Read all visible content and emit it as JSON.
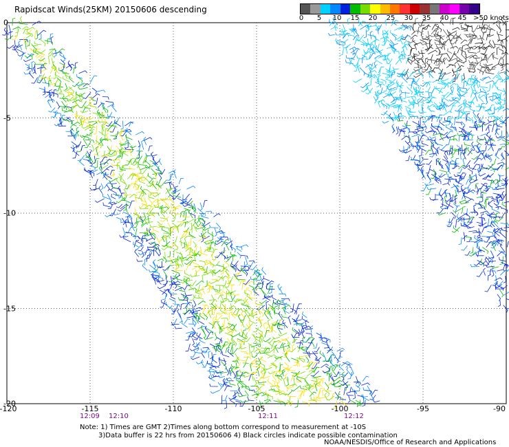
{
  "title": "Rapidscat Winds(25KM) 20150606 descending",
  "legend": {
    "colors": [
      "#555555",
      "#999999",
      "#00d0ff",
      "#0088ff",
      "#0022dd",
      "#00bb00",
      "#77dd00",
      "#ffff00",
      "#ffbb00",
      "#ff7700",
      "#ff3333",
      "#cc0000",
      "#993333",
      "#777777",
      "#cc00cc",
      "#ff00ff",
      "#7700aa",
      "#330088"
    ],
    "labels": [
      "0",
      "5",
      "10",
      "15",
      "20",
      "25",
      "30",
      "35",
      "40",
      "45",
      ">50 knots"
    ]
  },
  "axes": {
    "x_ticks": [
      "-120",
      "-115",
      "-110",
      "-105",
      "-100",
      "-95",
      "-90"
    ],
    "y_ticks": [
      "0",
      "-5",
      "-10",
      "-15",
      "-20"
    ],
    "x_range": [
      -120,
      -90
    ],
    "y_range": [
      0,
      -20
    ]
  },
  "times": [
    "12:09",
    "12:10",
    "12:11",
    "12:12"
  ],
  "note": {
    "line1": "Note: 1) Times are GMT 2)Times along bottom correspond to measurement at -10S",
    "line2": "3)Data buffer is 22 hrs from 20150606 4) Black circles indicate possible contamination"
  },
  "credit": "NOAA/NESDIS/Office of Research and Applications"
}
